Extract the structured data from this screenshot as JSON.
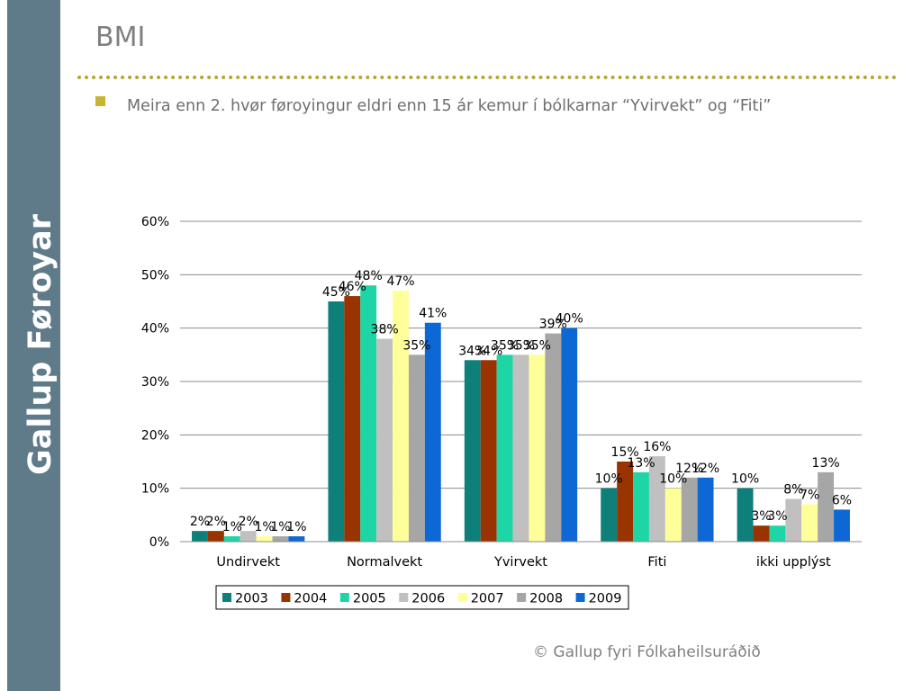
{
  "sidebar": {
    "brand": "Gallup Føroyar"
  },
  "slide": {
    "title": "BMI",
    "bullet_text": "Meira enn 2. hvør føroyingur eldri enn 15 ár kemur í bólkarnar “Yvirvekt” og “Fiti”",
    "footer": "© Gallup fyri Fólkaheilsuráðið"
  },
  "colors": {
    "sidebar": "#5f7a88",
    "divider": "#b3a72d",
    "bullet": "#c8b432"
  },
  "chart_data": {
    "type": "bar",
    "categories": [
      "Undirvekt",
      "Normalvekt",
      "Yvirvekt",
      "Fiti",
      "ikki upplýst"
    ],
    "ylim": [
      0,
      60
    ],
    "yticks": [
      0,
      10,
      20,
      30,
      40,
      50,
      60
    ],
    "ytick_labels": [
      "0%",
      "10%",
      "20%",
      "30%",
      "40%",
      "50%",
      "60%"
    ],
    "grid": true,
    "legend_position": "bottom",
    "series": [
      {
        "name": "2003",
        "color": "#0f7f7a",
        "values": [
          2,
          45,
          34,
          10,
          10
        ],
        "labels": [
          "2%",
          "45%",
          "34%",
          "10%",
          "10%"
        ]
      },
      {
        "name": "2004",
        "color": "#993300",
        "values": [
          2,
          46,
          34,
          15,
          3
        ],
        "labels": [
          "2%",
          "46%",
          "34%",
          "15%",
          "3%"
        ]
      },
      {
        "name": "2005",
        "color": "#1ed5a6",
        "values": [
          1,
          48,
          35,
          13,
          3
        ],
        "labels": [
          "1%",
          "48%",
          "35%",
          "13%",
          "3%"
        ]
      },
      {
        "name": "2006",
        "color": "#c0c0c0",
        "values": [
          2,
          38,
          35,
          16,
          8
        ],
        "labels": [
          "2%",
          "38%",
          "35%",
          "16%",
          "8%"
        ]
      },
      {
        "name": "2007",
        "color": "#ffff99",
        "values": [
          1,
          47,
          35,
          10,
          7
        ],
        "labels": [
          "1%",
          "47%",
          "35%",
          "10%",
          "7%"
        ]
      },
      {
        "name": "2008",
        "color": "#a6a6a6",
        "values": [
          1,
          35,
          39,
          12,
          13
        ],
        "labels": [
          "1%",
          "35%",
          "39%",
          "12%",
          "13%"
        ]
      },
      {
        "name": "2009",
        "color": "#0d68d6",
        "values": [
          1,
          41,
          40,
          12,
          6
        ],
        "labels": [
          "1%",
          "41%",
          "40%",
          "12%",
          "6%"
        ]
      }
    ]
  }
}
